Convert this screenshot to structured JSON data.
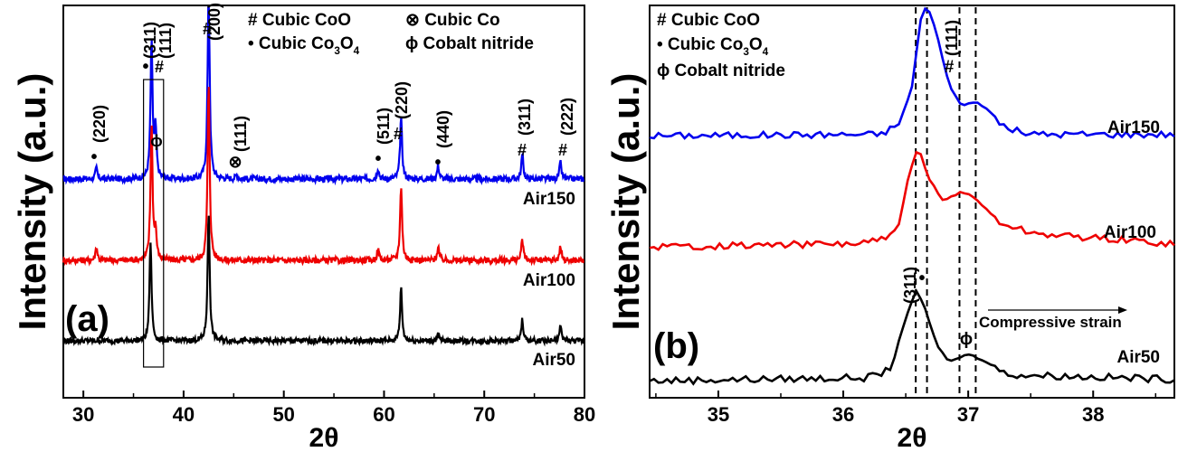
{
  "chart_data": [
    {
      "type": "line",
      "panel_label": "(a)",
      "xlabel": "2θ",
      "ylabel": "Intensity (a.u.)",
      "xlim": [
        28,
        80
      ],
      "xticks": [
        30,
        40,
        50,
        60,
        70,
        80
      ],
      "legend": [
        {
          "symbol": "#",
          "text": "Cubic CoO"
        },
        {
          "symbol": "•",
          "text": "Cubic Co3O4"
        },
        {
          "symbol": "⊗",
          "text": "Cubic Co"
        },
        {
          "symbol": "ϕ",
          "text": "Cobalt nitride"
        }
      ],
      "series": [
        {
          "name": "Air150",
          "color": "#0000ee",
          "offset": 2.0,
          "peaks": [
            [
              31.3,
              0.08
            ],
            [
              36.8,
              1.0
            ],
            [
              37.2,
              0.35
            ],
            [
              42.5,
              1.4
            ],
            [
              45.3,
              0.03
            ],
            [
              59.4,
              0.08
            ],
            [
              61.7,
              0.45
            ],
            [
              65.4,
              0.1
            ],
            [
              73.8,
              0.18
            ],
            [
              77.6,
              0.12
            ]
          ]
        },
        {
          "name": "Air100",
          "color": "#ee0000",
          "offset": 1.0,
          "peaks": [
            [
              31.3,
              0.1
            ],
            [
              36.8,
              1.0
            ],
            [
              37.2,
              0.2
            ],
            [
              42.5,
              1.3
            ],
            [
              59.4,
              0.08
            ],
            [
              61.7,
              0.55
            ],
            [
              65.4,
              0.1
            ],
            [
              73.8,
              0.15
            ],
            [
              77.6,
              0.1
            ]
          ]
        },
        {
          "name": "Air50",
          "color": "#000000",
          "offset": 0.0,
          "peaks": [
            [
              36.7,
              0.85
            ],
            [
              42.5,
              1.1
            ],
            [
              61.7,
              0.45
            ],
            [
              65.4,
              0.05
            ],
            [
              73.8,
              0.18
            ],
            [
              77.6,
              0.12
            ]
          ]
        }
      ],
      "annotations": [
        {
          "x": 31.3,
          "marker": "•",
          "hkl": "(220)"
        },
        {
          "x": 36.8,
          "marker": "•",
          "hkl": "(311)"
        },
        {
          "x": 37.2,
          "marker": "#",
          "hkl": "(111)"
        },
        {
          "x": 37.2,
          "marker": "ϕ",
          "hkl": ""
        },
        {
          "x": 42.5,
          "marker": "#",
          "hkl": "(200)"
        },
        {
          "x": 45.3,
          "marker": "⊗",
          "hkl": "(111)"
        },
        {
          "x": 59.4,
          "marker": "•",
          "hkl": "(511)"
        },
        {
          "x": 61.7,
          "marker": "#",
          "hkl": "(220)"
        },
        {
          "x": 65.4,
          "marker": "•",
          "hkl": "(440)"
        },
        {
          "x": 73.8,
          "marker": "#",
          "hkl": "(311)"
        },
        {
          "x": 77.6,
          "marker": "#",
          "hkl": "(222)"
        }
      ],
      "highlight_box_x": [
        36.0,
        38.0
      ]
    },
    {
      "type": "line",
      "panel_label": "(b)",
      "xlabel": "2θ",
      "ylabel": "Intensity (a.u.)",
      "xlim": [
        34.45,
        38.65
      ],
      "xticks": [
        35,
        36,
        37,
        38
      ],
      "legend": [
        {
          "symbol": "#",
          "text": "Cubic CoO"
        },
        {
          "symbol": "•",
          "text": "Cubic Co3O4"
        },
        {
          "symbol": "ϕ",
          "text": "Cobalt nitride"
        }
      ],
      "series": [
        {
          "name": "Air150",
          "color": "#0000ee",
          "points": [
            [
              34.45,
              0.12
            ],
            [
              36.3,
              0.13
            ],
            [
              36.45,
              0.2
            ],
            [
              36.55,
              0.45
            ],
            [
              36.62,
              0.9
            ],
            [
              36.67,
              1.0
            ],
            [
              36.75,
              0.8
            ],
            [
              36.85,
              0.45
            ],
            [
              36.95,
              0.32
            ],
            [
              37.05,
              0.35
            ],
            [
              37.15,
              0.3
            ],
            [
              37.3,
              0.17
            ],
            [
              37.5,
              0.13
            ],
            [
              38.65,
              0.13
            ]
          ]
        },
        {
          "name": "Air100",
          "color": "#ee0000",
          "points": [
            [
              34.45,
              0.1
            ],
            [
              36.1,
              0.12
            ],
            [
              36.35,
              0.15
            ],
            [
              36.45,
              0.25
            ],
            [
              36.52,
              0.55
            ],
            [
              36.6,
              0.75
            ],
            [
              36.68,
              0.55
            ],
            [
              36.8,
              0.4
            ],
            [
              36.95,
              0.46
            ],
            [
              37.05,
              0.42
            ],
            [
              37.25,
              0.26
            ],
            [
              37.5,
              0.19
            ],
            [
              37.8,
              0.17
            ],
            [
              38.65,
              0.12
            ]
          ]
        },
        {
          "name": "Air50",
          "color": "#000000",
          "points": [
            [
              34.45,
              0.05
            ],
            [
              36.2,
              0.07
            ],
            [
              36.38,
              0.12
            ],
            [
              36.5,
              0.45
            ],
            [
              36.58,
              0.62
            ],
            [
              36.65,
              0.52
            ],
            [
              36.75,
              0.27
            ],
            [
              36.85,
              0.17
            ],
            [
              37.0,
              0.22
            ],
            [
              37.15,
              0.17
            ],
            [
              37.3,
              0.09
            ],
            [
              38.65,
              0.06
            ]
          ]
        }
      ],
      "dashed_lines_x": [
        36.58,
        36.67,
        36.93,
        37.06
      ],
      "annotations": [
        {
          "x": 36.58,
          "marker": "•",
          "hkl": "(311)",
          "series": "Air50"
        },
        {
          "x": 36.88,
          "marker": "#",
          "hkl": "(111)",
          "series": "Air150"
        },
        {
          "x": 36.97,
          "marker": "ϕ",
          "hkl": "",
          "series": "Air50"
        }
      ],
      "strain_arrow_label": "Compressive strain"
    }
  ]
}
